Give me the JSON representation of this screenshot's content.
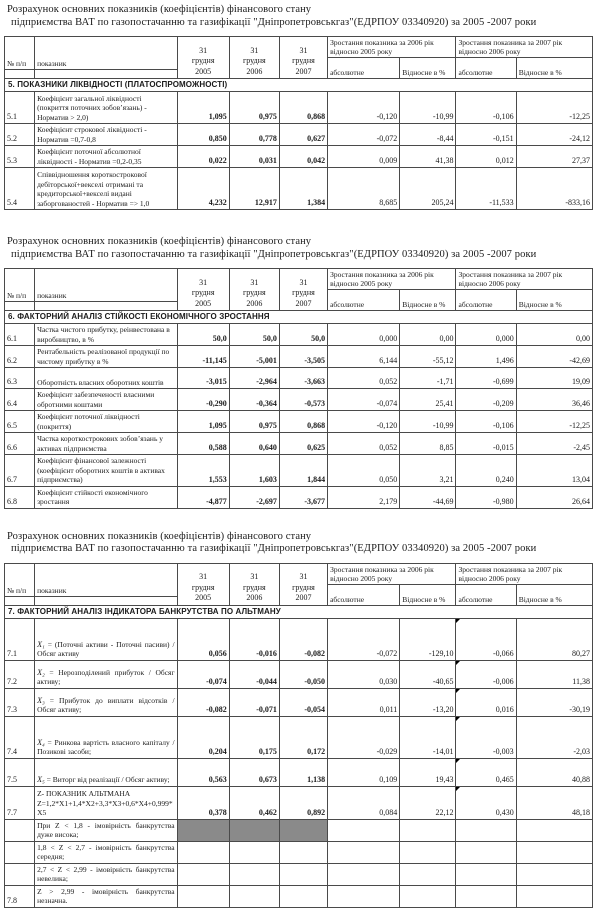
{
  "report": {
    "title": {
      "line1": "Розрахунок основних показників (коефіцієнтів) фінансового стану",
      "line2": "підприємства ВАТ по газопостачанню та газифікації \"Дніпропетровськгаз\"(ЕДРПОУ 03340920) за 2005 -2007 роки"
    },
    "header": {
      "num": "№ п/п",
      "indicator": "показник",
      "years": [
        [
          "31",
          "грудня",
          "2005"
        ],
        [
          "31",
          "грудня",
          "2006"
        ],
        [
          "31",
          "грудня",
          "2007"
        ]
      ],
      "groups": [
        "Зростання показника за 2006 рік відносно 2005 року",
        "Зростання показника за 2007 рік відносно 2006 року"
      ],
      "subheaders": [
        "абсолютне",
        "Відносне в %",
        "абсолютне",
        "Відносне в %"
      ]
    },
    "tables": [
      {
        "section": "5. ПОКАЗНИКИ ЛІКВІДНОСТІ (ПЛАТОСПРОМОЖНОСТІ)",
        "rows": [
          {
            "num": "5.1",
            "name": "Коефіцієнт загальної ліквідності (покриття поточних зобов’язань) - Норматив > 2,0)",
            "values": [
              "1,095",
              "0,975",
              "0,868",
              "-0,120",
              "-10,99",
              "-0,106",
              "-12,25"
            ]
          },
          {
            "num": "5.2",
            "name": "Коефіцієнт строкової ліквідності - Норматив =0,7-0,8",
            "values": [
              "0,850",
              "0,778",
              "0,627",
              "-0,072",
              "-8,44",
              "-0,151",
              "-24,12"
            ]
          },
          {
            "num": "5.3",
            "name": "Коефіцієнт поточної абсолютної ліквідності - Норматив =0,2-0,35",
            "values": [
              "0,022",
              "0,031",
              "0,042",
              "0,009",
              "41,38",
              "0,012",
              "27,37"
            ]
          },
          {
            "num": "5.4",
            "name": "Співвідношення короткострокової дебіторської+векселі отримані та кредиторської+векселі видані заборгованостей - Норматив => 1,0",
            "values": [
              "4,232",
              "12,917",
              "1,384",
              "8,685",
              "205,24",
              "-11,533",
              "-833,16"
            ]
          }
        ]
      },
      {
        "section": "6. ФАКТОРНИЙ АНАЛІЗ СТІЙКОСТІ ЕКОНОМІЧНОГО ЗРОСТАННЯ",
        "rows": [
          {
            "num": "6.1",
            "name": "Частка чистого прибутку, реінвестована в виробництво, в %",
            "values": [
              "50,0",
              "50,0",
              "50,0",
              "0,000",
              "0,00",
              "0,000",
              "0,00"
            ]
          },
          {
            "num": "6.2",
            "name": "Рентабельність реалізованої продукції по чистому прибутку в %",
            "values": [
              "-11,145",
              "-5,001",
              "-3,505",
              "6,144",
              "-55,12",
              "1,496",
              "-42,69"
            ]
          },
          {
            "num": "6.3",
            "name": "Оборотність власних оборотних коштів",
            "values": [
              "-3,015",
              "-2,964",
              "-3,663",
              "0,052",
              "-1,71",
              "-0,699",
              "19,09"
            ]
          },
          {
            "num": "6.4",
            "name": "Коефіцієнт забезпеченості власними обротними коштами",
            "values": [
              "-0,290",
              "-0,364",
              "-0,573",
              "-0,074",
              "25,41",
              "-0,209",
              "36,46"
            ]
          },
          {
            "num": "6.5",
            "name": "Коефіцієнт поточної ліквідності (покриття)",
            "values": [
              "1,095",
              "0,975",
              "0,868",
              "-0,120",
              "-10,99",
              "-0,106",
              "-12,25"
            ]
          },
          {
            "num": "6.6",
            "name": "Частка короткострокових зобов’язань у активах підприємства",
            "values": [
              "0,588",
              "0,640",
              "0,625",
              "0,052",
              "8,85",
              "-0,015",
              "-2,45"
            ]
          },
          {
            "num": "6.7",
            "name": "Коефіцієнт фінансової залежності (коефіцієнт оборотних коштів в активах підприємства)",
            "values": [
              "1,553",
              "1,603",
              "1,844",
              "0,050",
              "3,21",
              "0,240",
              "13,04"
            ]
          },
          {
            "num": "6.8",
            "name": "Коефіцієнт стійкості економічного зростання",
            "values": [
              "-4,877",
              "-2,697",
              "-3,677",
              "2,179",
              "-44,69",
              "-0,980",
              "26,64"
            ]
          }
        ]
      },
      {
        "section": "7. ФАКТОРНИЙ АНАЛІЗ ІНДИКАТОРА БАНКРУТСТВА ПО АЛЬТМАНУ",
        "rows": [
          {
            "num": "7.1",
            "formula": "X₁",
            "name": "= (Поточні активи - Поточні пасиви) / Обсяг активу",
            "values": [
              "0,056",
              "-0,016",
              "-0,082",
              "-0,072",
              "-129,10",
              "-0,066",
              "80,27"
            ],
            "mark": true
          },
          {
            "num": "7.2",
            "formula": "X₂",
            "name": "= Нерозподілений прибуток / Обсяг активу;",
            "values": [
              "-0,074",
              "-0,044",
              "-0,050",
              "0,030",
              "-40,65",
              "-0,006",
              "11,38"
            ],
            "mark": true
          },
          {
            "num": "7.3",
            "formula": "X₃",
            "name": "= Прибуток до виплати відсотків / Обсяг активу;",
            "values": [
              "-0,082",
              "-0,071",
              "-0,054",
              "0,011",
              "-13,20",
              "0,016",
              "-30,19"
            ],
            "mark": true
          },
          {
            "num": "7.4",
            "formula": "X₄",
            "name": "= Ринкова вартість власного капіталу / Позикові засоби;",
            "values": [
              "0,204",
              "0,175",
              "0,172",
              "-0,029",
              "-14,01",
              "-0,003",
              "-2,03"
            ],
            "mark": true
          },
          {
            "num": "7.5",
            "formula": "X₅",
            "name": "= Виторг від реалізації / Обсяг активу;",
            "values": [
              "0,563",
              "0,673",
              "1,138",
              "0,109",
              "19,43",
              "0,465",
              "40,88"
            ],
            "mark": true
          },
          {
            "num": "7.7",
            "name": "Z- ПОКАЗНИК АЛЬТМАНА Z=1,2*X1+1,4*X2+3,3*X3+0,6*X4+0,999*X5",
            "values": [
              "0,378",
              "0,462",
              "0,892",
              "0,084",
              "22,12",
              "0,430",
              "48,18"
            ],
            "mark": true
          },
          {
            "num": "",
            "name": "При Z < 1,8 - імовірність банкрутства дуже висока;",
            "values": [
              "",
              "",
              "",
              "",
              "",
              "",
              ""
            ],
            "shade_years": true
          },
          {
            "num": "",
            "name": "1,8 < Z < 2,7 - імовірність банкрутства середня;",
            "values": [
              "",
              "",
              "",
              "",
              "",
              "",
              ""
            ]
          },
          {
            "num": "",
            "name": "2,7 < Z < 2,99 - імовірність банкрутства невелика;",
            "values": [
              "",
              "",
              "",
              "",
              "",
              "",
              ""
            ]
          },
          {
            "num": "7.8",
            "name": "Z > 2,99 - імовірність банкрутства незначна.",
            "values": [
              "",
              "",
              "",
              "",
              "",
              "",
              ""
            ]
          }
        ]
      }
    ],
    "shade_color": "#8a8a8a"
  }
}
